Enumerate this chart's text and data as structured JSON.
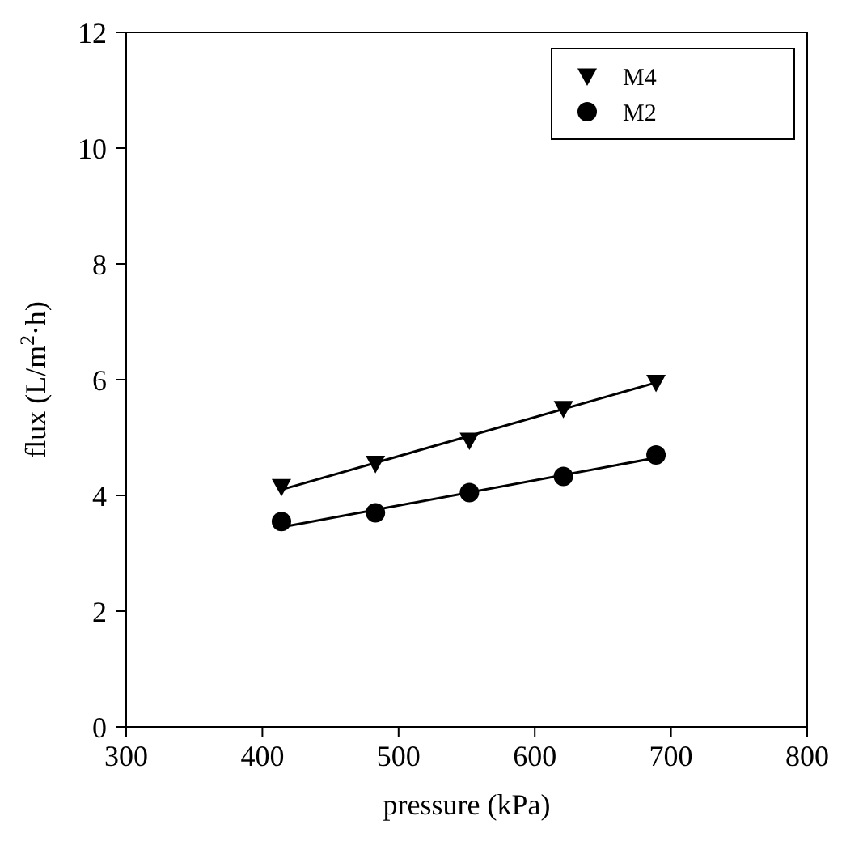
{
  "chart_data": {
    "type": "scatter",
    "xlabel": "pressure (kPa)",
    "ylabel": "flux (L/m$^{2}$·h)",
    "xlim": [
      300,
      800
    ],
    "ylim": [
      0,
      12
    ],
    "xticks": [
      300,
      400,
      500,
      600,
      700,
      800
    ],
    "yticks": [
      0,
      2,
      4,
      6,
      8,
      10,
      12
    ],
    "legend": "top right",
    "grid": false,
    "series": [
      {
        "name": "M4",
        "color": "#000000",
        "marker": "triangle-down",
        "x": [
          414,
          483,
          552,
          621,
          689
        ],
        "values": [
          4.15,
          4.55,
          4.95,
          5.5,
          5.95
        ]
      },
      {
        "name": "M2",
        "color": "#000000",
        "marker": "circle",
        "x": [
          414,
          483,
          552,
          621,
          689
        ],
        "values": [
          3.55,
          3.7,
          4.05,
          4.33,
          4.7
        ]
      },
      {
        "type": "line",
        "color": "#000000",
        "marker": "none",
        "x": [
          414,
          689
        ],
        "values": [
          4.1,
          5.95
        ]
      },
      {
        "type": "line",
        "color": "#000000",
        "marker": "none",
        "x": [
          414,
          689
        ],
        "values": [
          3.45,
          4.65
        ]
      }
    ]
  }
}
